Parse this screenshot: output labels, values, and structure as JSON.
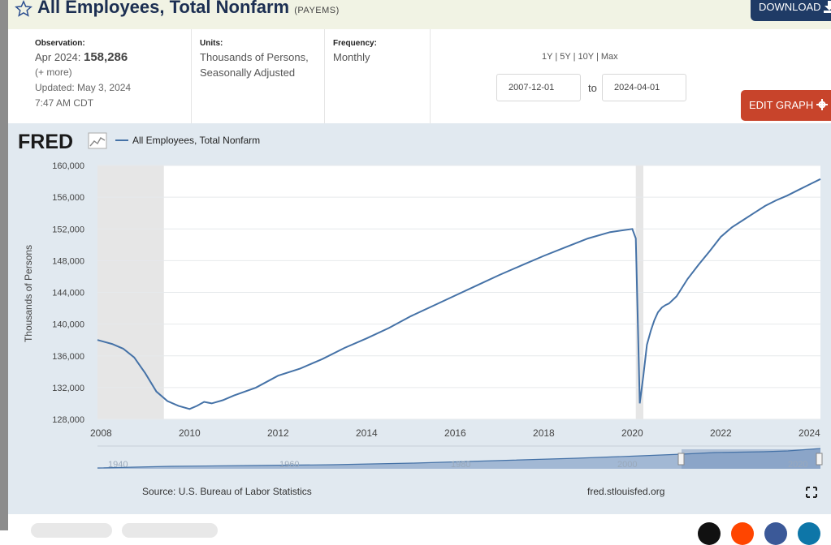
{
  "header": {
    "title": "All Employees, Total Nonfarm",
    "series_id": "(PAYEMS)",
    "download_label": "DOWNLOAD"
  },
  "meta": {
    "observation_label": "Observation:",
    "observation_period": "Apr 2024:",
    "observation_value": "158,286",
    "more_link": "(+ more)",
    "updated_prefix": "Updated:",
    "updated_date": "May 3, 2024",
    "updated_time": "7:47 AM CDT",
    "units_label": "Units:",
    "units_line1": "Thousands of Persons,",
    "units_line2": "Seasonally Adjusted",
    "frequency_label": "Frequency:",
    "frequency_value": "Monthly",
    "range_1y": "1Y",
    "range_5y": "5Y",
    "range_10y": "10Y",
    "range_max": "Max",
    "range_sep": "|",
    "start_date": "2007-12-01",
    "to_label": "to",
    "end_date": "2024-04-01",
    "edit_graph_label": "EDIT GRAPH"
  },
  "chart_footer": {
    "source": "Source: U.S. Bureau of Labor Statistics",
    "site": "fred.stlouisfed.org"
  },
  "colors": {
    "line": "#4572a7",
    "recession": "#e6e6e6",
    "panel": "#e1e9f0",
    "edit_button": "#c8442b",
    "download_button": "#1f3b66"
  },
  "chart_data": {
    "type": "line",
    "title": "",
    "logo": "FRED",
    "legend": [
      "All Employees, Total Nonfarm"
    ],
    "legend_position": "top-left",
    "xlabel": "",
    "ylabel": "Thousands of Persons",
    "x_ticks": [
      "2008",
      "2010",
      "2012",
      "2014",
      "2016",
      "2018",
      "2020",
      "2022",
      "2024"
    ],
    "y_ticks": [
      "128,000",
      "132,000",
      "136,000",
      "140,000",
      "144,000",
      "148,000",
      "152,000",
      "156,000",
      "160,000"
    ],
    "xlim": [
      2007.92,
      2024.25
    ],
    "ylim": [
      128000,
      160000
    ],
    "recessions": [
      [
        2007.92,
        2009.42
      ],
      [
        2020.08,
        2020.25
      ]
    ],
    "x": [
      2007.92,
      2008.25,
      2008.5,
      2008.75,
      2009.0,
      2009.25,
      2009.5,
      2009.75,
      2010.0,
      2010.17,
      2010.33,
      2010.5,
      2010.75,
      2011.0,
      2011.5,
      2012.0,
      2012.5,
      2013.0,
      2013.5,
      2014.0,
      2014.5,
      2015.0,
      2015.5,
      2016.0,
      2016.5,
      2017.0,
      2017.5,
      2018.0,
      2018.5,
      2019.0,
      2019.5,
      2020.0,
      2020.08,
      2020.17,
      2020.25,
      2020.33,
      2020.42,
      2020.5,
      2020.58,
      2020.67,
      2020.75,
      2020.83,
      2021.0,
      2021.25,
      2021.5,
      2021.75,
      2022.0,
      2022.25,
      2022.5,
      2022.75,
      2023.0,
      2023.25,
      2023.5,
      2023.75,
      2024.0,
      2024.25
    ],
    "y": [
      138000,
      137500,
      136900,
      135800,
      133800,
      131500,
      130300,
      129700,
      129300,
      129700,
      130200,
      130000,
      130400,
      131000,
      132000,
      133500,
      134400,
      135600,
      137000,
      138200,
      139500,
      141000,
      142300,
      143600,
      144900,
      146200,
      147400,
      148600,
      149700,
      150800,
      151600,
      152000,
      150800,
      130000,
      133500,
      137400,
      139200,
      140500,
      141500,
      142100,
      142400,
      142600,
      143500,
      145700,
      147500,
      149200,
      151000,
      152200,
      153100,
      154000,
      154900,
      155600,
      156200,
      156900,
      157600,
      158286
    ],
    "navigator": {
      "labels": [
        "1940",
        "1960",
        "1980",
        "2000",
        "2020"
      ]
    }
  }
}
